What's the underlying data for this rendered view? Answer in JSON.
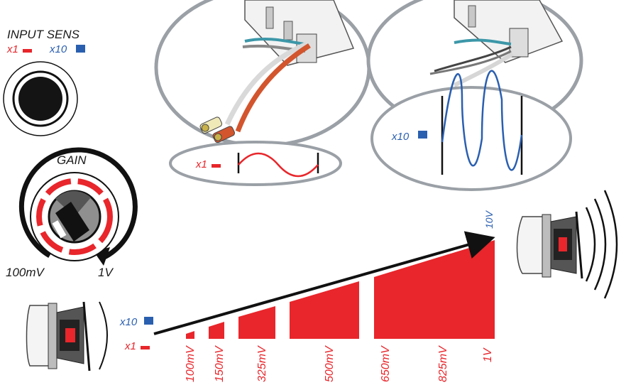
{
  "input_sens": {
    "title": "INPUT SENS",
    "x1_label": "x1",
    "x10_label": "x10"
  },
  "gain": {
    "title": "GAIN",
    "min_label": "100mV",
    "max_label": "1V"
  },
  "callouts": {
    "x1_label": "x1",
    "x10_label": "x10"
  },
  "ramp": {
    "x10_label": "x10",
    "x1_label": "x1",
    "top_label": "10V",
    "ticks": [
      "100mV",
      "150mV",
      "325mV",
      "500mV",
      "650mV",
      "825mV",
      "1V"
    ]
  },
  "colors": {
    "red": "#e8262b",
    "blue": "#2a5fb0",
    "ring": "#9aa0a6",
    "dark": "#1a1a1a"
  }
}
